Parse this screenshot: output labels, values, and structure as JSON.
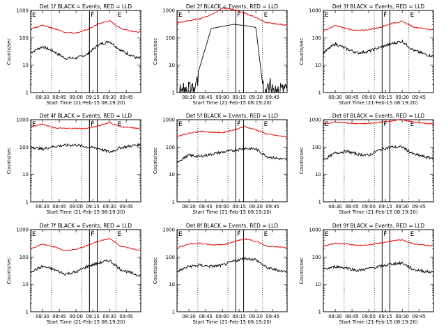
{
  "x_tick_labels": [
    "08:30",
    "08:45",
    "09:00",
    "09:15",
    "09:30",
    "09:45"
  ],
  "y_tick_labels": [
    "1",
    "10",
    "100",
    "1000"
  ],
  "ylabel": "Counts/sec",
  "xlabel": "Start Time (21-Feb-15 08:19:20)",
  "colors": {
    "events": "#000000",
    "lld": "#e00000",
    "axes": "#000000"
  },
  "chart_data": [
    {
      "type": "line",
      "title": "Det 1f BLACK = Events, RED = LLD",
      "x_markers": [
        "E",
        "F",
        "E"
      ],
      "xlim": [
        "08:19:20",
        "09:58"
      ],
      "ylim": [
        1,
        1000
      ],
      "yscale": "log",
      "series": [
        {
          "name": "Events",
          "x": [
            "08:20",
            "08:30",
            "08:40",
            "08:50",
            "09:00",
            "09:10",
            "09:20",
            "09:30",
            "09:40",
            "09:55"
          ],
          "values": [
            30,
            48,
            32,
            18,
            18,
            25,
            55,
            75,
            35,
            18
          ]
        },
        {
          "name": "LLD",
          "x": [
            "08:20",
            "08:30",
            "08:40",
            "08:50",
            "09:00",
            "09:10",
            "09:20",
            "09:30",
            "09:40",
            "09:55"
          ],
          "values": [
            210,
            290,
            220,
            160,
            150,
            200,
            320,
            420,
            220,
            160
          ]
        }
      ]
    },
    {
      "type": "line",
      "title": "Det 2f BLACK = Events, RED = LLD",
      "x_markers": [
        "E",
        "F",
        "E"
      ],
      "xlim": [
        "08:19:20",
        "09:58"
      ],
      "ylim": [
        1,
        1000
      ],
      "yscale": "log",
      "series": [
        {
          "name": "Events",
          "x": [
            "08:20",
            "08:33",
            "08:38",
            "08:50",
            "09:00",
            "09:10",
            "09:20",
            "09:30",
            "09:36",
            "09:55"
          ],
          "values": [
            1.5,
            1.3,
            5,
            220,
            260,
            310,
            280,
            240,
            2,
            2
          ]
        },
        {
          "name": "LLD",
          "x": [
            "08:20",
            "08:30",
            "08:40",
            "08:50",
            "09:00",
            "09:10",
            "09:20",
            "09:30",
            "09:40",
            "09:55"
          ],
          "values": [
            350,
            420,
            500,
            700,
            1200,
            1100,
            800,
            550,
            350,
            300
          ]
        }
      ]
    },
    {
      "type": "line",
      "title": "Det 3f BLACK = Events, RED = LLD",
      "x_markers": [
        "E",
        "F",
        "E"
      ],
      "xlim": [
        "08:19:20",
        "09:58"
      ],
      "ylim": [
        1,
        1000
      ],
      "yscale": "log",
      "series": [
        {
          "name": "Events",
          "x": [
            "08:20",
            "08:30",
            "08:40",
            "08:50",
            "09:00",
            "09:10",
            "09:20",
            "09:30",
            "09:40",
            "09:55"
          ],
          "values": [
            30,
            60,
            40,
            28,
            32,
            45,
            60,
            75,
            35,
            22
          ]
        },
        {
          "name": "LLD",
          "x": [
            "08:20",
            "08:30",
            "08:40",
            "08:50",
            "09:00",
            "09:10",
            "09:20",
            "09:30",
            "09:40",
            "09:55"
          ],
          "values": [
            180,
            280,
            220,
            180,
            200,
            240,
            330,
            400,
            250,
            200
          ]
        }
      ]
    },
    {
      "type": "line",
      "title": "Det 4f BLACK = Events, RED = LLD",
      "x_markers": [
        "E",
        "F",
        "E"
      ],
      "xlim": [
        "08:19:20",
        "09:58"
      ],
      "ylim": [
        1,
        1000
      ],
      "yscale": "log",
      "series": [
        {
          "name": "Events",
          "x": [
            "08:20",
            "08:30",
            "08:40",
            "08:50",
            "09:00",
            "09:10",
            "09:20",
            "09:30",
            "09:40",
            "09:55"
          ],
          "values": [
            100,
            85,
            105,
            115,
            120,
            100,
            90,
            65,
            95,
            120
          ]
        },
        {
          "name": "LLD",
          "x": [
            "08:20",
            "08:30",
            "08:40",
            "08:50",
            "09:00",
            "09:10",
            "09:20",
            "09:30",
            "09:40",
            "09:55"
          ],
          "values": [
            550,
            700,
            500,
            480,
            480,
            480,
            600,
            780,
            550,
            480
          ]
        }
      ]
    },
    {
      "type": "line",
      "title": "Det 5f BLACK = Events, RED = LLD",
      "x_markers": [
        "E",
        "F",
        "E"
      ],
      "xlim": [
        "08:19:20",
        "09:58"
      ],
      "ylim": [
        1,
        1000
      ],
      "yscale": "log",
      "series": [
        {
          "name": "Events",
          "x": [
            "08:20",
            "08:30",
            "08:40",
            "08:50",
            "09:00",
            "09:10",
            "09:20",
            "09:30",
            "09:40",
            "09:55"
          ],
          "values": [
            30,
            50,
            45,
            55,
            65,
            75,
            90,
            85,
            45,
            35
          ]
        },
        {
          "name": "LLD",
          "x": [
            "08:20",
            "08:30",
            "08:40",
            "08:50",
            "09:00",
            "09:10",
            "09:20",
            "09:30",
            "09:40",
            "09:55"
          ],
          "values": [
            250,
            320,
            380,
            350,
            340,
            420,
            560,
            430,
            300,
            240
          ]
        }
      ]
    },
    {
      "type": "line",
      "title": "Det 6f BLACK = Events, RED = LLD",
      "x_markers": [
        "E",
        "F",
        "E"
      ],
      "xlim": [
        "08:19:20",
        "09:58"
      ],
      "ylim": [
        1,
        1000
      ],
      "yscale": "log",
      "series": [
        {
          "name": "Events",
          "x": [
            "08:20",
            "08:30",
            "08:40",
            "08:50",
            "09:00",
            "09:10",
            "09:20",
            "09:30",
            "09:40",
            "09:55"
          ],
          "values": [
            35,
            60,
            70,
            55,
            50,
            80,
            100,
            100,
            55,
            40
          ]
        },
        {
          "name": "LLD",
          "x": [
            "08:20",
            "08:30",
            "08:40",
            "08:50",
            "09:00",
            "09:10",
            "09:20",
            "09:30",
            "09:40",
            "09:55"
          ],
          "values": [
            700,
            820,
            760,
            720,
            720,
            800,
            900,
            1000,
            820,
            700
          ]
        }
      ]
    },
    {
      "type": "line",
      "title": "Det 7f BLACK = Events, RED = LLD",
      "x_markers": [
        "E",
        "F",
        "E"
      ],
      "xlim": [
        "08:19:20",
        "09:58"
      ],
      "ylim": [
        1,
        1000
      ],
      "yscale": "log",
      "series": [
        {
          "name": "Events",
          "x": [
            "08:20",
            "08:30",
            "08:40",
            "08:50",
            "09:00",
            "09:10",
            "09:20",
            "09:30",
            "09:40",
            "09:55"
          ],
          "values": [
            30,
            45,
            35,
            24,
            28,
            45,
            60,
            75,
            35,
            22
          ]
        },
        {
          "name": "LLD",
          "x": [
            "08:20",
            "08:30",
            "08:40",
            "08:50",
            "09:00",
            "09:10",
            "09:20",
            "09:30",
            "09:40",
            "09:55"
          ],
          "values": [
            200,
            300,
            240,
            170,
            190,
            260,
            380,
            480,
            250,
            180
          ]
        }
      ]
    },
    {
      "type": "line",
      "title": "Det 8f BLACK = Events, RED = LLD",
      "x_markers": [
        "E",
        "F",
        "E"
      ],
      "xlim": [
        "08:19:20",
        "09:58"
      ],
      "ylim": [
        1,
        1000
      ],
      "yscale": "log",
      "series": [
        {
          "name": "Events",
          "x": [
            "08:20",
            "08:30",
            "08:40",
            "08:50",
            "09:00",
            "09:10",
            "09:20",
            "09:30",
            "09:40",
            "09:55"
          ],
          "values": [
            30,
            45,
            50,
            45,
            50,
            70,
            90,
            80,
            40,
            30
          ]
        },
        {
          "name": "LLD",
          "x": [
            "08:20",
            "08:30",
            "08:40",
            "08:50",
            "09:00",
            "09:10",
            "09:20",
            "09:30",
            "09:40",
            "09:55"
          ],
          "values": [
            220,
            300,
            320,
            280,
            280,
            360,
            460,
            380,
            250,
            220
          ]
        }
      ]
    },
    {
      "type": "line",
      "title": "Det 9f BLACK = Events, RED = LLD",
      "x_markers": [
        "E",
        "F",
        "E"
      ],
      "xlim": [
        "08:19:20",
        "09:58"
      ],
      "ylim": [
        1,
        1000
      ],
      "yscale": "log",
      "series": [
        {
          "name": "Events",
          "x": [
            "08:20",
            "08:30",
            "08:40",
            "08:50",
            "09:00",
            "09:10",
            "09:20",
            "09:30",
            "09:40",
            "09:55"
          ],
          "values": [
            35,
            45,
            40,
            32,
            38,
            45,
            55,
            60,
            35,
            28
          ]
        },
        {
          "name": "LLD",
          "x": [
            "08:20",
            "08:30",
            "08:40",
            "08:50",
            "09:00",
            "09:10",
            "09:20",
            "09:30",
            "09:40",
            "09:55"
          ],
          "values": [
            250,
            320,
            300,
            260,
            280,
            320,
            380,
            420,
            300,
            260
          ]
        }
      ]
    }
  ]
}
